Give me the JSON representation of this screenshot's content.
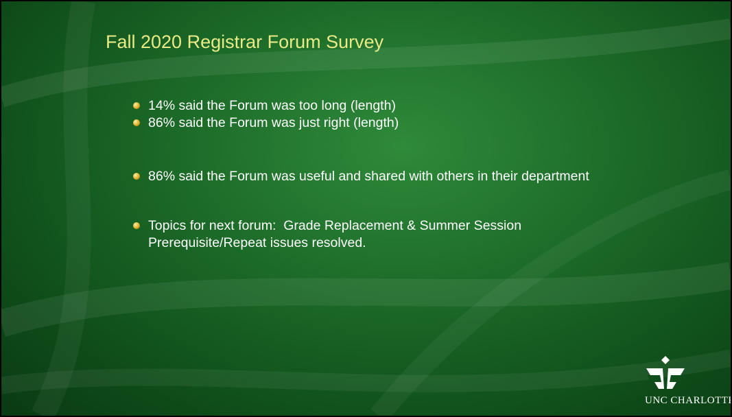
{
  "title": "Fall 2020 Registrar Forum Survey",
  "bullets": [
    "14% said the Forum was too long (length)",
    "86% said the Forum was just right (length)",
    "86% said the Forum was useful and shared with others in their department",
    "Topics for next forum:  Grade Replacement & Summer Session Prerequisite/Repeat issues resolved."
  ],
  "logo": "UNC CHARLOTTE"
}
